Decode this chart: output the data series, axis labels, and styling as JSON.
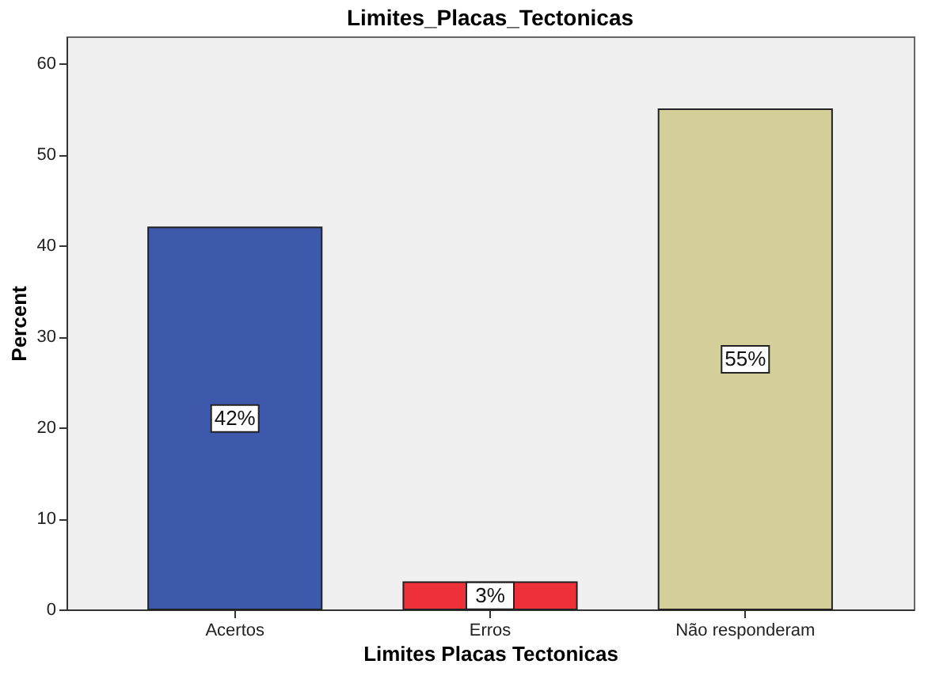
{
  "chart_data": {
    "type": "bar",
    "title": "Limites_Placas_Tectonicas",
    "xlabel": "Limites  Placas  Tectonicas",
    "ylabel": "Percent",
    "categories": [
      "Acertos",
      "Erros",
      "Não responderam"
    ],
    "values": [
      42,
      3,
      55
    ],
    "colors": [
      "#3e58ac",
      "#ee3038",
      "#d4cf98"
    ],
    "value_labels": [
      "42%",
      "3%",
      "55%"
    ],
    "ylim": [
      0,
      63
    ],
    "yticks": [
      0,
      10,
      20,
      30,
      40,
      50,
      60
    ],
    "grid": false
  }
}
